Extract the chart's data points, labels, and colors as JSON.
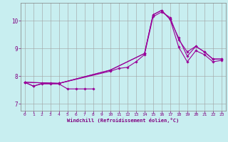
{
  "xlabel": "Windchill (Refroidissement éolien,°C)",
  "background_color": "#c8eef0",
  "grid_color": "#a0a0a0",
  "line_color": "#990099",
  "xlim": [
    -0.5,
    23.5
  ],
  "ylim": [
    6.75,
    10.65
  ],
  "yticks": [
    7,
    8,
    9,
    10
  ],
  "xticks": [
    0,
    1,
    2,
    3,
    4,
    5,
    6,
    7,
    8,
    9,
    10,
    11,
    12,
    13,
    14,
    15,
    16,
    17,
    18,
    19,
    20,
    21,
    22,
    23
  ],
  "series": [
    {
      "x": [
        0,
        1,
        2,
        3,
        4,
        5,
        6,
        7,
        8
      ],
      "y": [
        7.78,
        7.64,
        7.72,
        7.72,
        7.72,
        7.54,
        7.54,
        7.54,
        7.54
      ]
    },
    {
      "x": [
        0,
        1,
        2,
        3,
        4,
        10,
        11,
        12,
        13,
        14,
        15,
        16,
        17,
        18,
        19,
        20,
        21,
        22,
        23
      ],
      "y": [
        7.78,
        7.64,
        7.74,
        7.74,
        7.74,
        8.18,
        8.28,
        8.32,
        8.52,
        8.78,
        10.15,
        10.32,
        10.12,
        9.32,
        8.88,
        9.08,
        8.88,
        8.62,
        8.62
      ]
    },
    {
      "x": [
        0,
        4,
        10,
        14,
        15,
        16,
        17,
        18,
        19,
        20,
        21,
        22,
        23
      ],
      "y": [
        7.78,
        7.74,
        8.22,
        8.82,
        10.22,
        10.38,
        10.05,
        9.05,
        8.52,
        8.92,
        8.78,
        8.52,
        8.57
      ]
    },
    {
      "x": [
        0,
        4,
        10,
        14,
        15,
        16,
        17,
        18,
        19,
        20,
        21,
        22,
        23
      ],
      "y": [
        7.78,
        7.74,
        8.22,
        8.82,
        10.22,
        10.38,
        10.05,
        9.38,
        8.72,
        9.08,
        8.88,
        8.62,
        8.62
      ]
    }
  ]
}
